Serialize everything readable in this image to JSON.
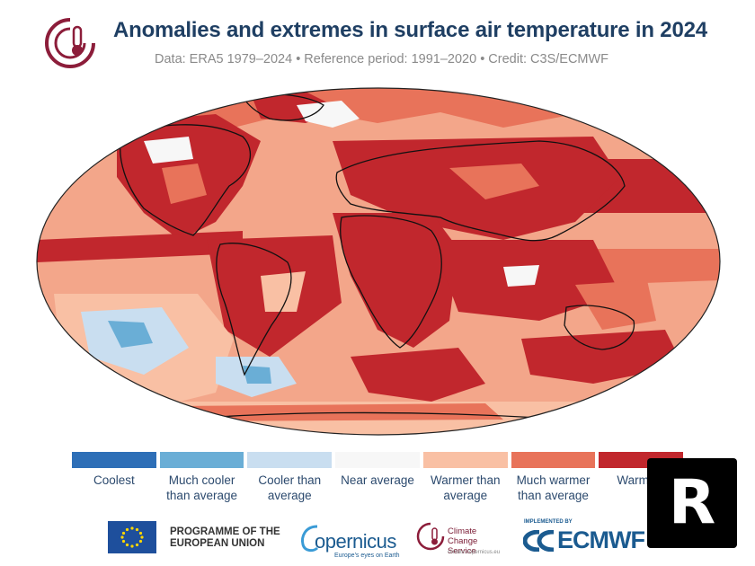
{
  "header": {
    "title": "Anomalies and extremes in surface air temperature in 2024",
    "subtitle": "Data: ERA5 1979–2024 • Reference period: 1991–2020 • Credit: C3S/ECMWF"
  },
  "map": {
    "description_icon": "world-map-icon",
    "colors": {
      "ocean_base": "#f3a68a",
      "warmest": "#c1272d",
      "much_warmer": "#e8735a",
      "warmer": "#f9c0a4",
      "near": "#f7f7f7",
      "cooler": "#c9def0",
      "much_cooler": "#6aaed6",
      "coolest": "#2e6fb7"
    }
  },
  "legend": {
    "items": [
      {
        "label": "Coolest",
        "color": "#2e6fb7"
      },
      {
        "label": "Much cooler than average",
        "color": "#6aaed6"
      },
      {
        "label": "Cooler than average",
        "color": "#c9def0"
      },
      {
        "label": "Near average",
        "color": "#f7f7f7"
      },
      {
        "label": "Warmer than average",
        "color": "#f9c0a4"
      },
      {
        "label": "Much warmer than average",
        "color": "#e8735a"
      },
      {
        "label": "Warmest",
        "color": "#c1272d"
      }
    ]
  },
  "footer": {
    "eu_text": "PROGRAMME OF THE EUROPEAN UNION",
    "copernicus": "opernicus",
    "copernicus_sub": "Europe's eyes on Earth",
    "c3s_title": "Climate Change Service",
    "c3s_url": "climate.copernicus.eu",
    "ecmwf_impl": "IMPLEMENTED BY",
    "ecmwf": "ECMWF"
  },
  "badge": {
    "letter": "R"
  }
}
